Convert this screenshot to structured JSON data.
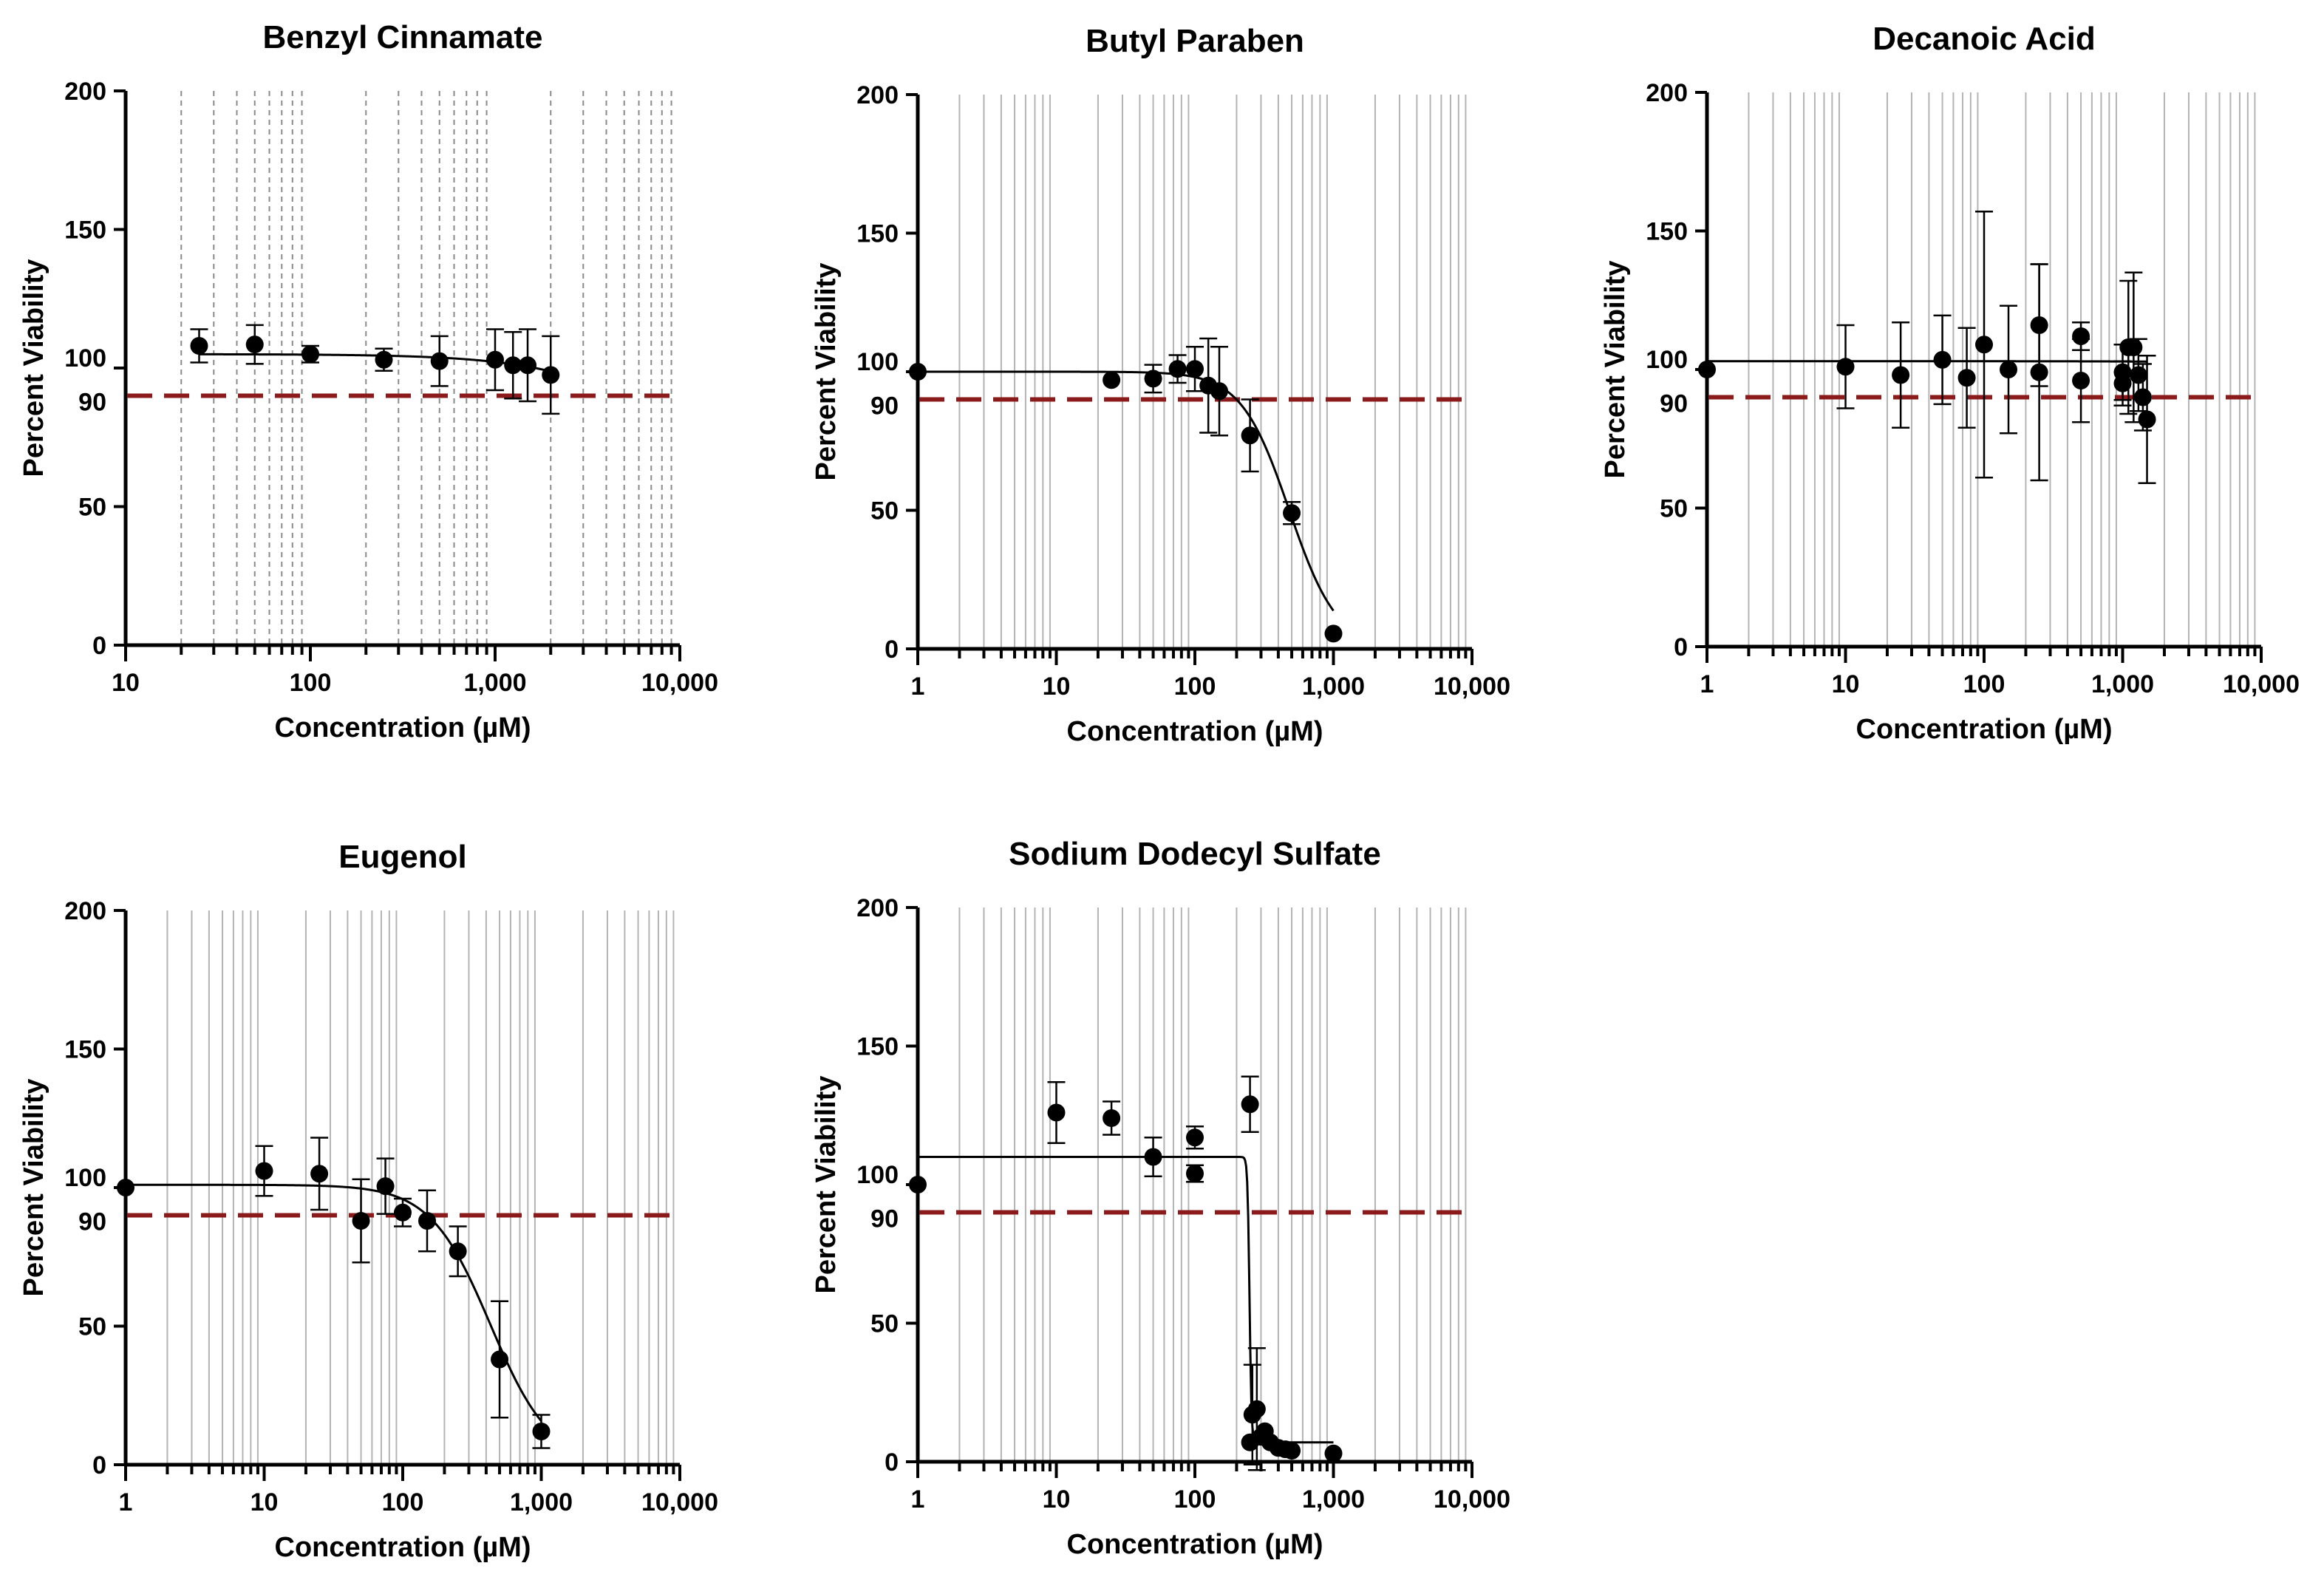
{
  "colors": {
    "threshold": "#8b1a1a",
    "marker": "#000000"
  },
  "chart_data": [
    {
      "type": "scatter",
      "title": "Benzyl Cinnamate",
      "xlabel": "Concentration (µM)",
      "ylabel": "Percent Viability",
      "xscale": "log",
      "xlim": [
        10,
        10000
      ],
      "ylim": [
        0,
        200
      ],
      "x_tick_labels": [
        "10",
        "100",
        "1,000",
        "10,000"
      ],
      "y_tick_labels": [
        "0",
        "50",
        "90",
        "100",
        "150",
        "200"
      ],
      "grid_style": "dashed",
      "threshold": 90,
      "points": [
        {
          "x": 25,
          "y": 108,
          "err": 6
        },
        {
          "x": 50,
          "y": 108.5,
          "err": 7
        },
        {
          "x": 100,
          "y": 105,
          "err": 3
        },
        {
          "x": 250,
          "y": 103,
          "err": 4
        },
        {
          "x": 500,
          "y": 102.5,
          "err": 9
        },
        {
          "x": 1000,
          "y": 103,
          "err": 11
        },
        {
          "x": 1250,
          "y": 101,
          "err": 12
        },
        {
          "x": 1500,
          "y": 101,
          "err": 13
        },
        {
          "x": 2000,
          "y": 97.5,
          "err": 14
        }
      ],
      "fit": {
        "top": 105,
        "bottom": 0,
        "ic50": 20000,
        "hill": 1.2,
        "x_range": [
          25,
          2000
        ]
      }
    },
    {
      "type": "scatter",
      "title": "Butyl Paraben",
      "xlabel": "Concentration (µM)",
      "ylabel": "Percent Viability",
      "xscale": "log",
      "xlim": [
        1,
        10000
      ],
      "ylim": [
        0,
        200
      ],
      "x_tick_labels": [
        "1",
        "10",
        "100",
        "1,000",
        "10,000"
      ],
      "y_tick_labels": [
        "0",
        "50",
        "90",
        "100",
        "150",
        "200"
      ],
      "grid_style": "solid",
      "threshold": 90,
      "points": [
        {
          "x": 1,
          "y": 100
        },
        {
          "x": 25,
          "y": 97
        },
        {
          "x": 50,
          "y": 97.5,
          "err": 5
        },
        {
          "x": 75,
          "y": 101,
          "err": 5
        },
        {
          "x": 100,
          "y": 101,
          "err": 8
        },
        {
          "x": 125,
          "y": 95,
          "err": 17
        },
        {
          "x": 150,
          "y": 93,
          "err": 16
        },
        {
          "x": 250,
          "y": 77,
          "err": 13
        },
        {
          "x": 500,
          "y": 49,
          "err": 4
        },
        {
          "x": 1000,
          "y": 5.5
        }
      ],
      "fit": {
        "top": 100,
        "bottom": 0,
        "ic50": 480,
        "hill": 2.5,
        "x_range": [
          1,
          1000
        ]
      }
    },
    {
      "type": "scatter",
      "title": "Decanoic Acid",
      "xlabel": "Concentration (µM)",
      "ylabel": "Percent Viability",
      "xscale": "log",
      "xlim": [
        1,
        10000
      ],
      "ylim": [
        0,
        200
      ],
      "x_tick_labels": [
        "1",
        "10",
        "100",
        "1,000",
        "10,000"
      ],
      "y_tick_labels": [
        "0",
        "50",
        "90",
        "100",
        "150",
        "200"
      ],
      "grid_style": "solid",
      "threshold": 90,
      "points": [
        {
          "x": 1,
          "y": 100
        },
        {
          "x": 10,
          "y": 101,
          "err": 15
        },
        {
          "x": 25,
          "y": 98,
          "err": 19
        },
        {
          "x": 50,
          "y": 103.5,
          "err": 16
        },
        {
          "x": 75,
          "y": 97,
          "err": 18
        },
        {
          "x": 100,
          "y": 109,
          "err": 48
        },
        {
          "x": 150,
          "y": 100,
          "err": 23
        },
        {
          "x": 250,
          "y": 116,
          "err": 22
        },
        {
          "x": 250,
          "y": 99,
          "err": 39
        },
        {
          "x": 500,
          "y": 112,
          "err": 5
        },
        {
          "x": 500,
          "y": 96,
          "err": 15
        },
        {
          "x": 1000,
          "y": 99,
          "err": 10
        },
        {
          "x": 1000,
          "y": 95,
          "err": 8
        },
        {
          "x": 1100,
          "y": 108,
          "err": 24
        },
        {
          "x": 1200,
          "y": 108,
          "err": 27
        },
        {
          "x": 1300,
          "y": 98,
          "err": 13
        },
        {
          "x": 1400,
          "y": 90,
          "err": 12
        },
        {
          "x": 1500,
          "y": 82,
          "err": 23
        }
      ],
      "fit": {
        "top": 103,
        "bottom": 0,
        "ic50": 1000000,
        "hill": 1,
        "x_range": [
          1,
          1500
        ]
      }
    },
    {
      "type": "scatter",
      "title": "Eugenol",
      "xlabel": "Concentration (µM)",
      "ylabel": "Percent Viability",
      "xscale": "log",
      "xlim": [
        1,
        10000
      ],
      "ylim": [
        0,
        200
      ],
      "x_tick_labels": [
        "1",
        "10",
        "100",
        "1,000",
        "10,000"
      ],
      "y_tick_labels": [
        "0",
        "50",
        "90",
        "100",
        "150",
        "200"
      ],
      "grid_style": "solid",
      "threshold": 90,
      "points": [
        {
          "x": 1,
          "y": 100
        },
        {
          "x": 10,
          "y": 106,
          "err": 9
        },
        {
          "x": 25,
          "y": 105,
          "err": 13
        },
        {
          "x": 50,
          "y": 88,
          "err": 15
        },
        {
          "x": 75,
          "y": 100.5,
          "err": 10
        },
        {
          "x": 100,
          "y": 91,
          "err": 5
        },
        {
          "x": 150,
          "y": 88,
          "err": 11
        },
        {
          "x": 250,
          "y": 77,
          "err": 9
        },
        {
          "x": 500,
          "y": 38,
          "err": 21
        },
        {
          "x": 1000,
          "y": 12,
          "err": 6
        }
      ],
      "fit": {
        "top": 101,
        "bottom": 0,
        "ic50": 430,
        "hill": 2.0,
        "x_range": [
          1,
          1000
        ]
      }
    },
    {
      "type": "scatter",
      "title": "Sodium Dodecyl Sulfate",
      "xlabel": "Concentration (µM)",
      "ylabel": "Percent Viability",
      "xscale": "log",
      "xlim": [
        1,
        10000
      ],
      "ylim": [
        0,
        200
      ],
      "x_tick_labels": [
        "1",
        "10",
        "100",
        "1,000",
        "10,000"
      ],
      "y_tick_labels": [
        "0",
        "50",
        "90",
        "100",
        "150",
        "200"
      ],
      "grid_style": "solid",
      "threshold": 90,
      "points": [
        {
          "x": 1,
          "y": 100
        },
        {
          "x": 10,
          "y": 126,
          "err": 11
        },
        {
          "x": 25,
          "y": 124,
          "err": 6
        },
        {
          "x": 50,
          "y": 110,
          "err": 7
        },
        {
          "x": 100,
          "y": 117,
          "err": 4
        },
        {
          "x": 100,
          "y": 104,
          "err": 3
        },
        {
          "x": 250,
          "y": 129,
          "err": 10
        },
        {
          "x": 260,
          "y": 17,
          "err": 18
        },
        {
          "x": 280,
          "y": 19,
          "err": 22
        },
        {
          "x": 250,
          "y": 7
        },
        {
          "x": 300,
          "y": 9
        },
        {
          "x": 320,
          "y": 11
        },
        {
          "x": 350,
          "y": 7
        },
        {
          "x": 400,
          "y": 5
        },
        {
          "x": 450,
          "y": 4.5
        },
        {
          "x": 500,
          "y": 4
        },
        {
          "x": 1000,
          "y": 3
        }
      ],
      "fit": {
        "top": 110,
        "bottom": 7,
        "ic50": 248,
        "hill": 60,
        "x_range": [
          1,
          1000
        ]
      }
    }
  ]
}
